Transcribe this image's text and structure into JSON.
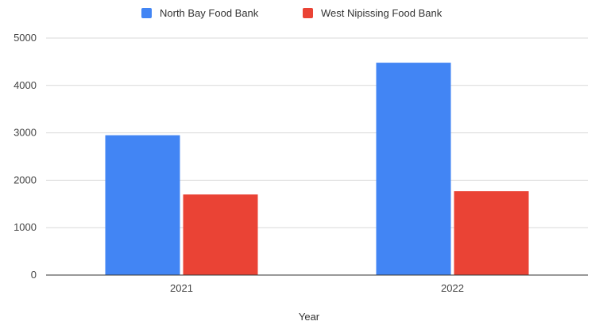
{
  "chart_data": {
    "type": "bar",
    "title": "",
    "xlabel": "Year",
    "ylabel": "",
    "categories": [
      "2021",
      "2022"
    ],
    "series": [
      {
        "name": "North Bay Food Bank",
        "values": [
          2950,
          4480
        ],
        "color": "#4285f4"
      },
      {
        "name": "West Nipissing Food Bank",
        "values": [
          1700,
          1770
        ],
        "color": "#ea4335"
      }
    ],
    "ylim": [
      0,
      5000
    ],
    "yticks": [
      0,
      1000,
      2000,
      3000,
      4000,
      5000
    ],
    "grid": true,
    "legend_position": "top"
  }
}
